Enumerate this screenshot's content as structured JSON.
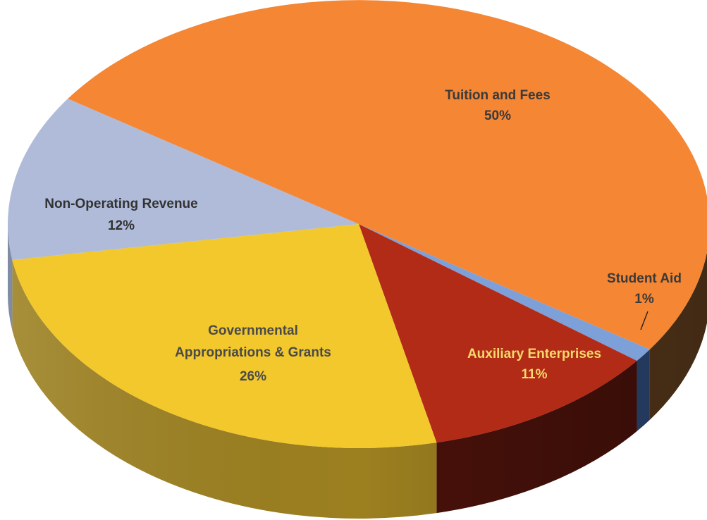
{
  "chart_data": {
    "type": "pie",
    "title": "",
    "start_angle_deg": 214,
    "slices": [
      {
        "name": "Tuition and Fees",
        "value": 50,
        "label": "50%",
        "color": "#F58634",
        "side_color": "#5B3A1C"
      },
      {
        "name": "Student Aid",
        "value": 1,
        "label": "1%",
        "color": "#7EA0D8",
        "side_color": "#2E4A78"
      },
      {
        "name": "Auxiliary Enterprises",
        "value": 11,
        "label": "11%",
        "color": "#B22B16",
        "side_color": "#4A110A"
      },
      {
        "name": "Governmental Appropriations & Grants",
        "value": 26,
        "label": "26%",
        "color": "#F2C82D",
        "side_color": "#9C8020"
      },
      {
        "name": "Non-Operating Revenue",
        "value": 12,
        "label": "12%",
        "color": "#AFBBD8",
        "side_color": "#6F7C98"
      }
    ]
  }
}
